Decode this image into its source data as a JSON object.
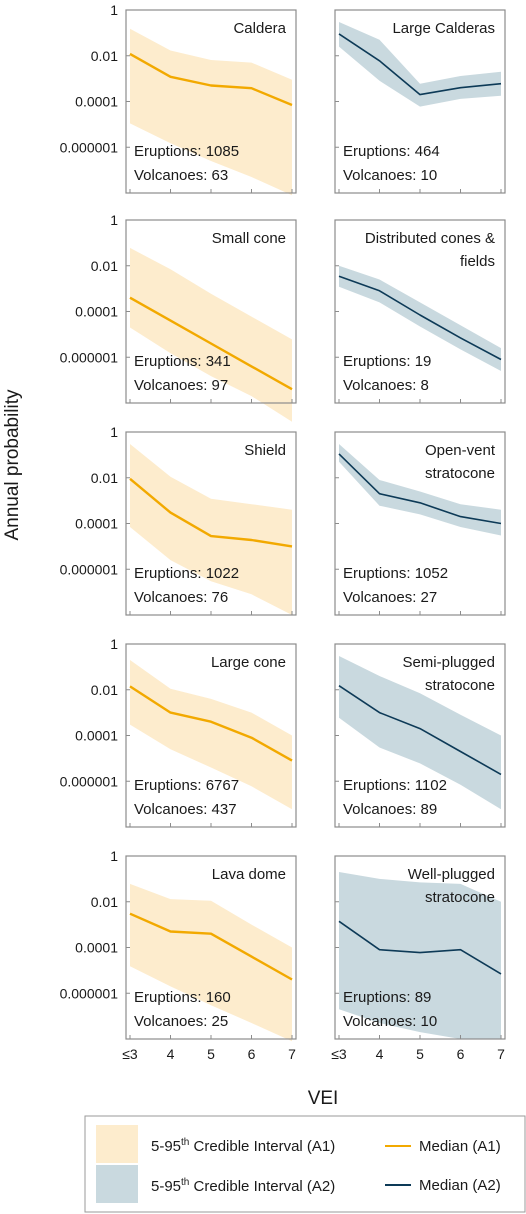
{
  "chart_data": {
    "type": "line",
    "x_tick_labels": [
      "≤3",
      "4",
      "5",
      "6",
      "7"
    ],
    "y_tick_labels": [
      "1",
      "0.01",
      "0.0001",
      "0.000001"
    ],
    "y_scale": "log",
    "ylim": [
      1e-08,
      1
    ],
    "xlabel": "VEI",
    "ylabel": "Annual probability",
    "grid": false,
    "legend_position": "bottom",
    "colors": {
      "A1_fill": "#fdeccd",
      "A1_line": "#f2a900",
      "A2_fill": "#c9d9df",
      "A2_line": "#0d3a57",
      "frame": "#8c8c8c"
    },
    "legend": [
      {
        "kind": "band",
        "series": "A1",
        "label_pre": "5-95",
        "label_sup": "th",
        "label_post": " Credible Interval (A1)"
      },
      {
        "kind": "line",
        "series": "A1",
        "label": "Median (A1)"
      },
      {
        "kind": "band",
        "series": "A2",
        "label_pre": "5-95",
        "label_sup": "th",
        "label_post": " Credible Interval (A2)"
      },
      {
        "kind": "line",
        "series": "A2",
        "label": "Median (A2)"
      }
    ],
    "panels": [
      {
        "title": [
          "Caldera"
        ],
        "series": "A1",
        "eruptions": "Eruptions: 1085",
        "volcanoes": "Volcanoes: 63",
        "median": [
          0.012,
          0.0012,
          0.0005,
          0.00038,
          7e-05
        ],
        "upper": [
          0.15,
          0.017,
          0.0065,
          0.005,
          0.0009
        ],
        "lower": [
          1.1e-05,
          1.5e-06,
          2.5e-07,
          5e-08,
          8e-09
        ]
      },
      {
        "title": [
          "Large Calderas"
        ],
        "series": "A2",
        "eruptions": "Eruptions: 464",
        "volcanoes": "Volcanoes: 10",
        "median": [
          0.09,
          0.006,
          0.0002,
          0.0004,
          0.0006
        ],
        "upper": [
          0.3,
          0.05,
          0.0006,
          0.0013,
          0.002
        ],
        "lower": [
          0.025,
          0.0008,
          6e-05,
          0.00013,
          0.00018
        ]
      },
      {
        "title": [
          "Small cone"
        ],
        "series": "A1",
        "eruptions": "Eruptions: 341",
        "volcanoes": "Volcanoes: 97",
        "median": [
          0.0004,
          4e-05,
          4e-06,
          4e-07,
          4e-08
        ],
        "upper": [
          0.06,
          0.007,
          0.0006,
          6e-05,
          6e-06
        ],
        "lower": [
          2e-05,
          1.5e-06,
          1.5e-07,
          2e-08,
          1.5e-09
        ]
      },
      {
        "title": [
          "Distributed cones &",
          "fields"
        ],
        "series": "A2",
        "eruptions": "Eruptions: 19",
        "volcanoes": "Volcanoes: 8",
        "median": [
          0.0035,
          0.0008,
          7e-05,
          7e-06,
          8e-07
        ],
        "upper": [
          0.01,
          0.0025,
          0.00025,
          2.5e-05,
          2.5e-06
        ],
        "lower": [
          0.0012,
          0.00025,
          2.2e-05,
          2.2e-06,
          2.5e-07
        ]
      },
      {
        "title": [
          "Shield"
        ],
        "series": "A1",
        "eruptions": "Eruptions: 1022",
        "volcanoes": "Volcanoes: 76",
        "median": [
          0.009,
          0.0003,
          2.8e-05,
          1.9e-05,
          1e-05
        ],
        "upper": [
          0.3,
          0.011,
          0.0012,
          0.0007,
          0.0004
        ],
        "lower": [
          7e-05,
          2.5e-06,
          3e-07,
          8e-08,
          1e-08
        ]
      },
      {
        "title": [
          "Open-vent",
          "stratocone"
        ],
        "series": "A2",
        "eruptions": "Eruptions: 1052",
        "volcanoes": "Volcanoes: 27",
        "median": [
          0.11,
          0.002,
          0.0008,
          0.0002,
          0.0001
        ],
        "upper": [
          0.3,
          0.008,
          0.0025,
          0.0007,
          0.0004
        ],
        "lower": [
          0.05,
          0.0006,
          0.00025,
          7e-05,
          3e-05
        ]
      },
      {
        "title": [
          "Large cone"
        ],
        "series": "A1",
        "eruptions": "Eruptions: 6767",
        "volcanoes": "Volcanoes: 437",
        "median": [
          0.014,
          0.001,
          0.0004,
          8e-05,
          8e-06
        ],
        "upper": [
          0.2,
          0.011,
          0.004,
          0.001,
          0.0001
        ],
        "lower": [
          0.0003,
          2.5e-05,
          4e-06,
          6e-07,
          6e-08
        ]
      },
      {
        "title": [
          "Semi-plugged",
          "stratocone"
        ],
        "series": "A2",
        "eruptions": "Eruptions: 1102",
        "volcanoes": "Volcanoes: 89",
        "median": [
          0.015,
          0.001,
          0.0002,
          2e-05,
          2e-06
        ],
        "upper": [
          0.3,
          0.04,
          0.007,
          0.0008,
          0.0001
        ],
        "lower": [
          0.0006,
          3e-05,
          6e-06,
          7e-07,
          6e-08
        ]
      },
      {
        "title": [
          "Lava dome"
        ],
        "series": "A1",
        "eruptions": "Eruptions: 160",
        "volcanoes": "Volcanoes: 25",
        "median": [
          0.003,
          0.0005,
          0.0004,
          4e-05,
          4e-06
        ],
        "upper": [
          0.06,
          0.013,
          0.011,
          0.001,
          0.0001
        ],
        "lower": [
          1.5e-05,
          2e-06,
          3e-07,
          5e-08,
          8e-09
        ]
      },
      {
        "title": [
          "Well-plugged",
          "stratocone"
        ],
        "series": "A2",
        "eruptions": "Eruptions: 89",
        "volcanoes": "Volcanoes: 10",
        "median": [
          0.0014,
          8e-05,
          6e-05,
          8e-05,
          7e-06
        ],
        "upper": [
          0.2,
          0.1,
          0.07,
          0.06,
          0.01
        ],
        "lower": [
          2e-07,
          5e-08,
          2e-08,
          1e-08,
          1e-08
        ]
      }
    ]
  }
}
